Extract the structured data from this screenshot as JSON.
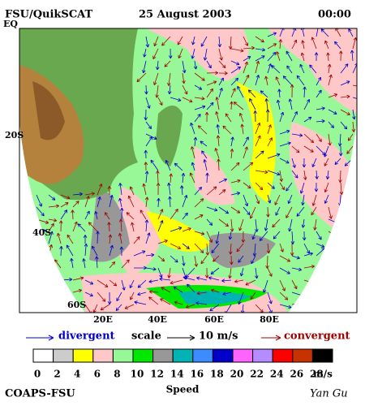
{
  "header": {
    "title": "FSU/QuikSCAT",
    "date": "25 August 2003",
    "time": "00:00"
  },
  "map": {
    "lat_labels": [
      "EQ",
      "20S",
      "40S",
      "60S"
    ],
    "lon_labels": [
      "20E",
      "40E",
      "60E",
      "80E"
    ]
  },
  "legend": {
    "divergent": "divergent",
    "scale": "scale",
    "scale_value": "10 m/s",
    "convergent": "convergent"
  },
  "colorbar": {
    "colors": [
      "#ffffff",
      "#cccccc",
      "#ffff00",
      "#ffc8c8",
      "#98f898",
      "#00e800",
      "#989898",
      "#00b4b4",
      "#3c8cff",
      "#0000c8",
      "#ff64ff",
      "#b48cff",
      "#ff0000",
      "#c83200",
      "#000000"
    ],
    "labels": [
      "0",
      "2",
      "4",
      "6",
      "8",
      "10",
      "12",
      "14",
      "16",
      "18",
      "20",
      "22",
      "24",
      "26",
      "28"
    ],
    "unit": "m/s",
    "title": "Speed"
  },
  "footer": {
    "left": "COAPS-FSU",
    "right": "Yan Gu"
  }
}
